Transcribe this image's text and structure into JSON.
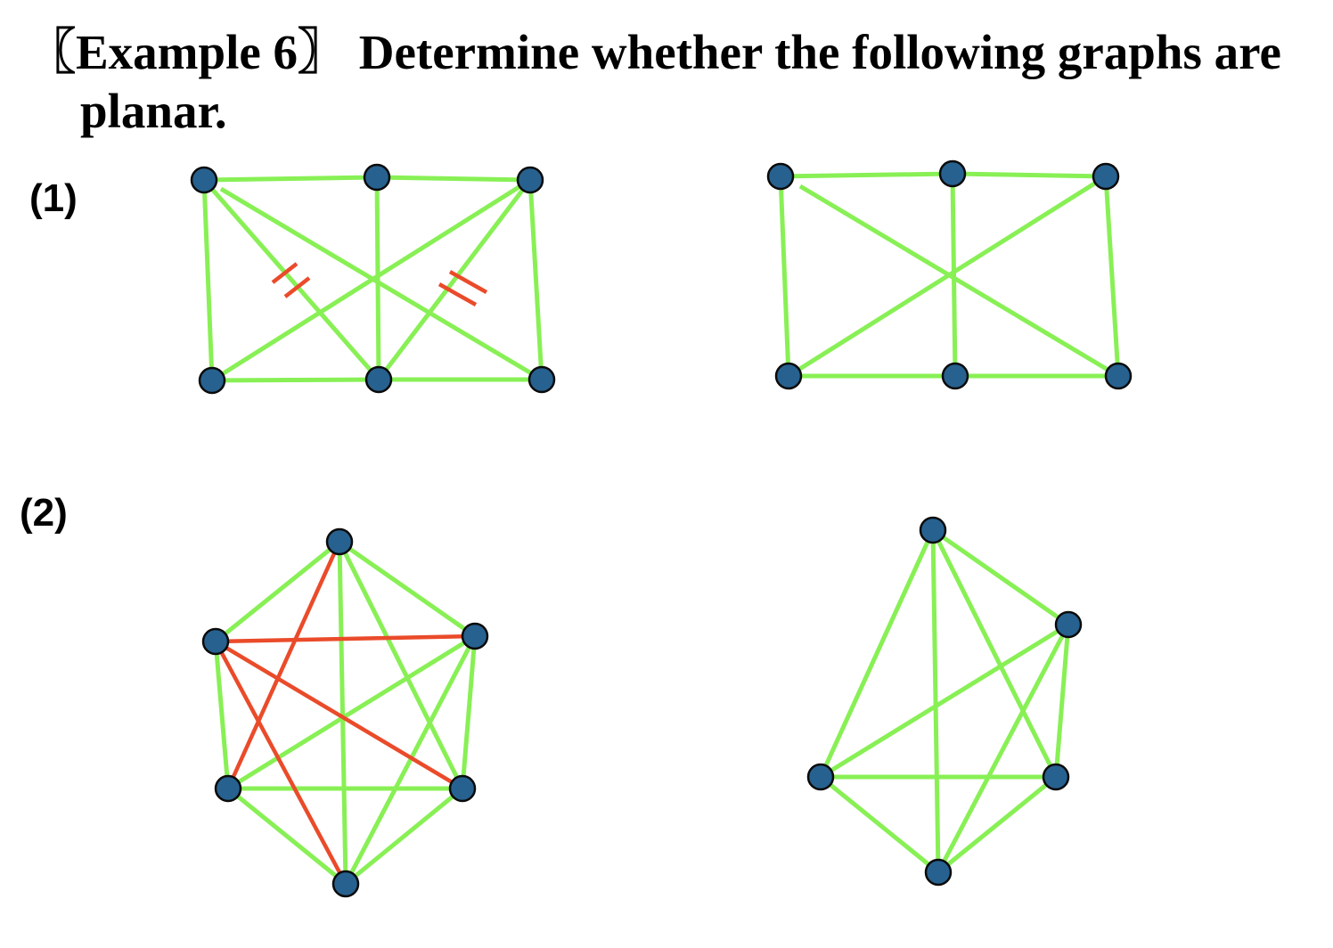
{
  "title": {
    "line1": "〖Example 6〗 Determine whether the following graphs are",
    "line2": "planar."
  },
  "parts": [
    {
      "label": "(1)"
    },
    {
      "label": "(2)"
    }
  ],
  "colors": {
    "edge": "#88f055",
    "highlight_edge": "#ea4b2a",
    "vertex_fill": "#27618f",
    "vertex_stroke": "#0b0b0b"
  }
}
